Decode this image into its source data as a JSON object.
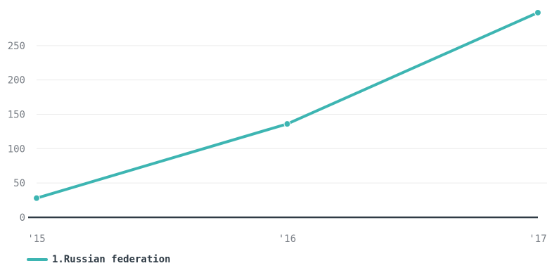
{
  "chart_data": {
    "type": "line",
    "x": [
      "'15",
      "'16",
      "'17"
    ],
    "series": [
      {
        "name": "1.Russian federation",
        "values": [
          28,
          136,
          298
        ],
        "color": "#3db5b2"
      }
    ],
    "yticks": [
      0,
      50,
      100,
      150,
      200,
      250
    ],
    "ylim": [
      0,
      300
    ],
    "grid": true,
    "legend_position": "bottom-left"
  }
}
